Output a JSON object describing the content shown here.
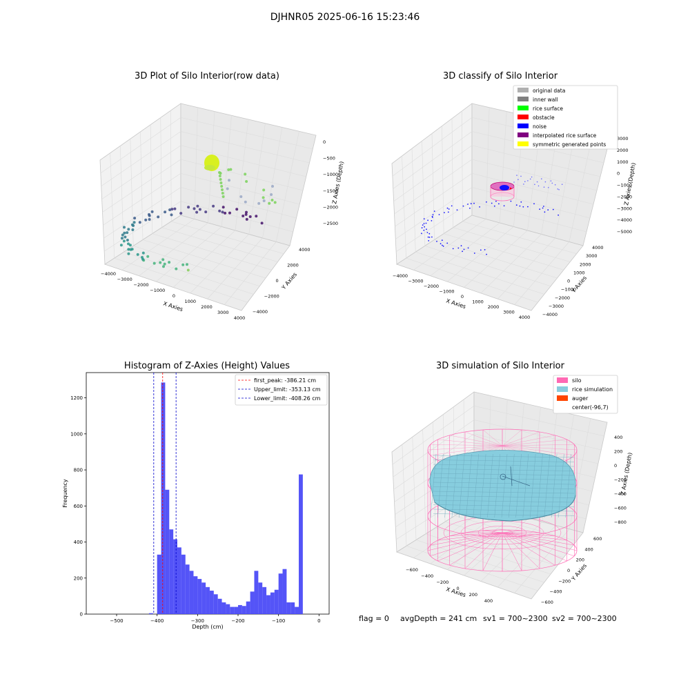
{
  "figure": {
    "suptitle": "DJHNR05 2025-06-16 15:23:46",
    "footer": {
      "flag": "flag = 0",
      "avg_depth": "avgDepth = 241 cm",
      "sv1": "sv1 = 700~2300",
      "sv2": "sv2 = 700~2300"
    }
  },
  "colors": {
    "hist_bar": "#4b4bf7",
    "peak_line": "#ff0000",
    "limit_line": "#0000cc",
    "silo": "#ff69b4",
    "rice_simulation": "#87cdde",
    "auger": "#ff4500",
    "pane": "#f2f2f2",
    "grid": "#d8d8d8"
  },
  "panels": {
    "raw": {
      "title": "3D Plot of Silo Interior(row data)",
      "xlabel": "X Axies",
      "ylabel": "Y Axies",
      "zlabel": "Z Axies (Depth)",
      "xticks": [
        "−4000",
        "−3000",
        "−2000",
        "−1000",
        "0",
        "1000",
        "2000",
        "3000",
        "4000"
      ],
      "yticks": [
        "−4000",
        "−2000",
        "0",
        "2000",
        "4000"
      ],
      "zticks": [
        "0",
        "−500",
        "−1000",
        "−1500",
        "−2000",
        "−2500"
      ]
    },
    "classify": {
      "title": "3D classify of Silo Interior",
      "xlabel": "X Axies",
      "ylabel": "Y Axies",
      "zlabel": "Z Axies (Depth)",
      "xticks": [
        "−4000",
        "−3000",
        "−2000",
        "−1000",
        "0",
        "1000",
        "2000",
        "3000",
        "4000"
      ],
      "yticks": [
        "−4000",
        "−3000",
        "−2000",
        "−1000",
        "0",
        "1000",
        "2000",
        "3000",
        "4000"
      ],
      "zticks": [
        "3000",
        "2000",
        "1000",
        "0",
        "−1000",
        "−2000",
        "−3000",
        "−4000",
        "−5000"
      ],
      "legend": [
        {
          "label": "original data",
          "color": "#b0b0b0"
        },
        {
          "label": "inner wall",
          "color": "#808080"
        },
        {
          "label": "rice surface",
          "color": "#00ff00"
        },
        {
          "label": "obstacle",
          "color": "#ff0000"
        },
        {
          "label": "noise",
          "color": "#0000ff"
        },
        {
          "label": "interpolated rice surface",
          "color": "#800080"
        },
        {
          "label": "symmetric generated points",
          "color": "#ffff00"
        }
      ]
    },
    "simulation": {
      "title": "3D simulation of Silo Interior",
      "xlabel": "X Axies",
      "ylabel": "Y Axies",
      "zlabel": "Z Axies (Depth)",
      "xticks": [
        "−600",
        "−400",
        "−200",
        "0",
        "200",
        "400"
      ],
      "yticks": [
        "−600",
        "−400",
        "−200",
        "0",
        "200",
        "400",
        "600"
      ],
      "zticks": [
        "400",
        "200",
        "0",
        "−200",
        "−400",
        "−600",
        "−800"
      ],
      "legend": [
        {
          "label": "silo",
          "color": "#ff69b4"
        },
        {
          "label": "rice simulation",
          "color": "#87cdde"
        },
        {
          "label": "auger",
          "color": "#ff4500"
        },
        {
          "label": "center(-96,7)",
          "color": ""
        }
      ]
    }
  },
  "chart_data": {
    "type": "bar",
    "title": "Histogram of Z-Axies (Height) Values",
    "xlabel": "Depth (cm)",
    "ylabel": "Frequency",
    "xlim": [
      -575,
      25
    ],
    "ylim": [
      0,
      1340
    ],
    "xticks": [
      -500,
      -400,
      -300,
      -200,
      -100,
      0
    ],
    "yticks": [
      0,
      200,
      400,
      600,
      800,
      1000,
      1200
    ],
    "bin_width": 10,
    "bins": [
      {
        "x0": -420,
        "x1": -410,
        "count": 5
      },
      {
        "x0": -400,
        "x1": -390,
        "count": 330
      },
      {
        "x0": -390,
        "x1": -380,
        "count": 1285
      },
      {
        "x0": -380,
        "x1": -370,
        "count": 690
      },
      {
        "x0": -370,
        "x1": -360,
        "count": 470
      },
      {
        "x0": -360,
        "x1": -350,
        "count": 415
      },
      {
        "x0": -350,
        "x1": -340,
        "count": 370
      },
      {
        "x0": -340,
        "x1": -330,
        "count": 330
      },
      {
        "x0": -330,
        "x1": -320,
        "count": 275
      },
      {
        "x0": -320,
        "x1": -310,
        "count": 240
      },
      {
        "x0": -310,
        "x1": -300,
        "count": 210
      },
      {
        "x0": -300,
        "x1": -290,
        "count": 195
      },
      {
        "x0": -290,
        "x1": -280,
        "count": 175
      },
      {
        "x0": -280,
        "x1": -270,
        "count": 150
      },
      {
        "x0": -270,
        "x1": -260,
        "count": 130
      },
      {
        "x0": -260,
        "x1": -250,
        "count": 110
      },
      {
        "x0": -250,
        "x1": -240,
        "count": 85
      },
      {
        "x0": -240,
        "x1": -230,
        "count": 65
      },
      {
        "x0": -230,
        "x1": -220,
        "count": 55
      },
      {
        "x0": -220,
        "x1": -210,
        "count": 40
      },
      {
        "x0": -210,
        "x1": -200,
        "count": 40
      },
      {
        "x0": -200,
        "x1": -190,
        "count": 50
      },
      {
        "x0": -190,
        "x1": -180,
        "count": 45
      },
      {
        "x0": -180,
        "x1": -170,
        "count": 70
      },
      {
        "x0": -170,
        "x1": -160,
        "count": 125
      },
      {
        "x0": -160,
        "x1": -150,
        "count": 240
      },
      {
        "x0": -150,
        "x1": -140,
        "count": 175
      },
      {
        "x0": -140,
        "x1": -130,
        "count": 150
      },
      {
        "x0": -130,
        "x1": -120,
        "count": 105
      },
      {
        "x0": -120,
        "x1": -110,
        "count": 120
      },
      {
        "x0": -110,
        "x1": -100,
        "count": 135
      },
      {
        "x0": -100,
        "x1": -90,
        "count": 225
      },
      {
        "x0": -90,
        "x1": -80,
        "count": 250
      },
      {
        "x0": -80,
        "x1": -70,
        "count": 65
      },
      {
        "x0": -70,
        "x1": -60,
        "count": 65
      },
      {
        "x0": -60,
        "x1": -50,
        "count": 40
      },
      {
        "x0": -50,
        "x1": -40,
        "count": 775
      }
    ],
    "vlines": [
      {
        "name": "first_peak",
        "label": "first_peak: -386.21 cm",
        "x": -386.21,
        "color": "#ff0000"
      },
      {
        "name": "upper-limit",
        "label": "Upper_limit: -353.13 cm",
        "x": -353.13,
        "color": "#0000cc"
      },
      {
        "name": "lower-limit",
        "label": "Lower_limit: -408.26 cm",
        "x": -408.26,
        "color": "#0000cc"
      }
    ],
    "legend_position": "top-right",
    "grid": false
  }
}
